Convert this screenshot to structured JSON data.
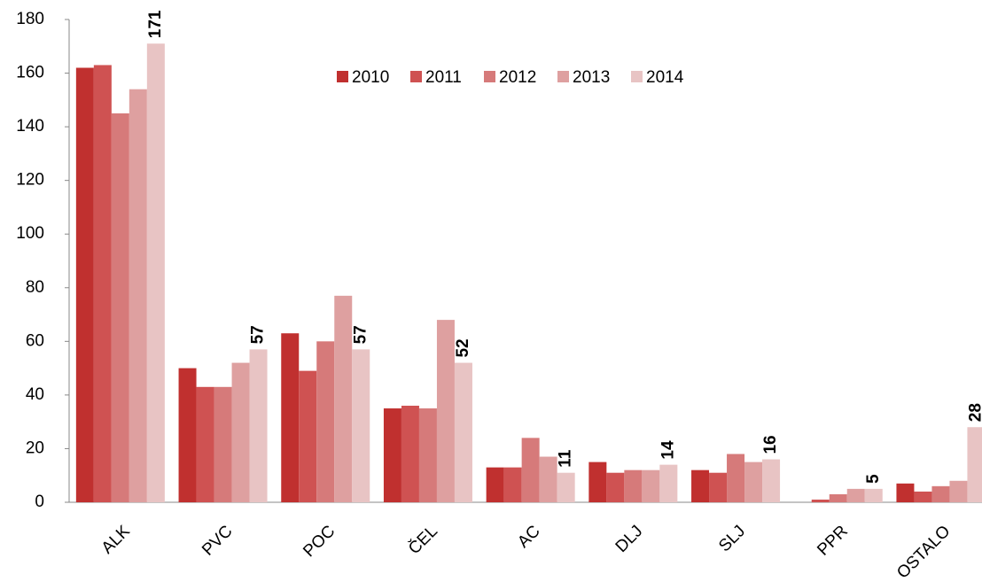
{
  "chart_data": {
    "type": "bar",
    "categories": [
      "ALK",
      "PVC",
      "POC",
      "ČEL",
      "AC",
      "DLJ",
      "SLJ",
      "PPR",
      "OSTALO"
    ],
    "series": [
      {
        "name": "2010",
        "color": "#c0302f",
        "values": [
          162,
          50,
          63,
          35,
          13,
          15,
          12,
          0,
          7
        ]
      },
      {
        "name": "2011",
        "color": "#cf5252",
        "values": [
          163,
          43,
          49,
          36,
          13,
          11,
          11,
          1,
          4
        ]
      },
      {
        "name": "2012",
        "color": "#d67a7a",
        "values": [
          145,
          43,
          60,
          35,
          24,
          12,
          18,
          3,
          6
        ]
      },
      {
        "name": "2013",
        "color": "#dea0a0",
        "values": [
          154,
          52,
          77,
          68,
          17,
          12,
          15,
          5,
          8
        ]
      },
      {
        "name": "2014",
        "color": "#e8c4c4",
        "values": [
          171,
          57,
          57,
          52,
          11,
          14,
          16,
          5,
          28
        ],
        "show_labels": true
      }
    ],
    "ylim": [
      0,
      180
    ],
    "yticks": [
      0,
      20,
      40,
      60,
      80,
      100,
      120,
      140,
      160,
      180
    ],
    "grid": false,
    "legend": "top"
  }
}
